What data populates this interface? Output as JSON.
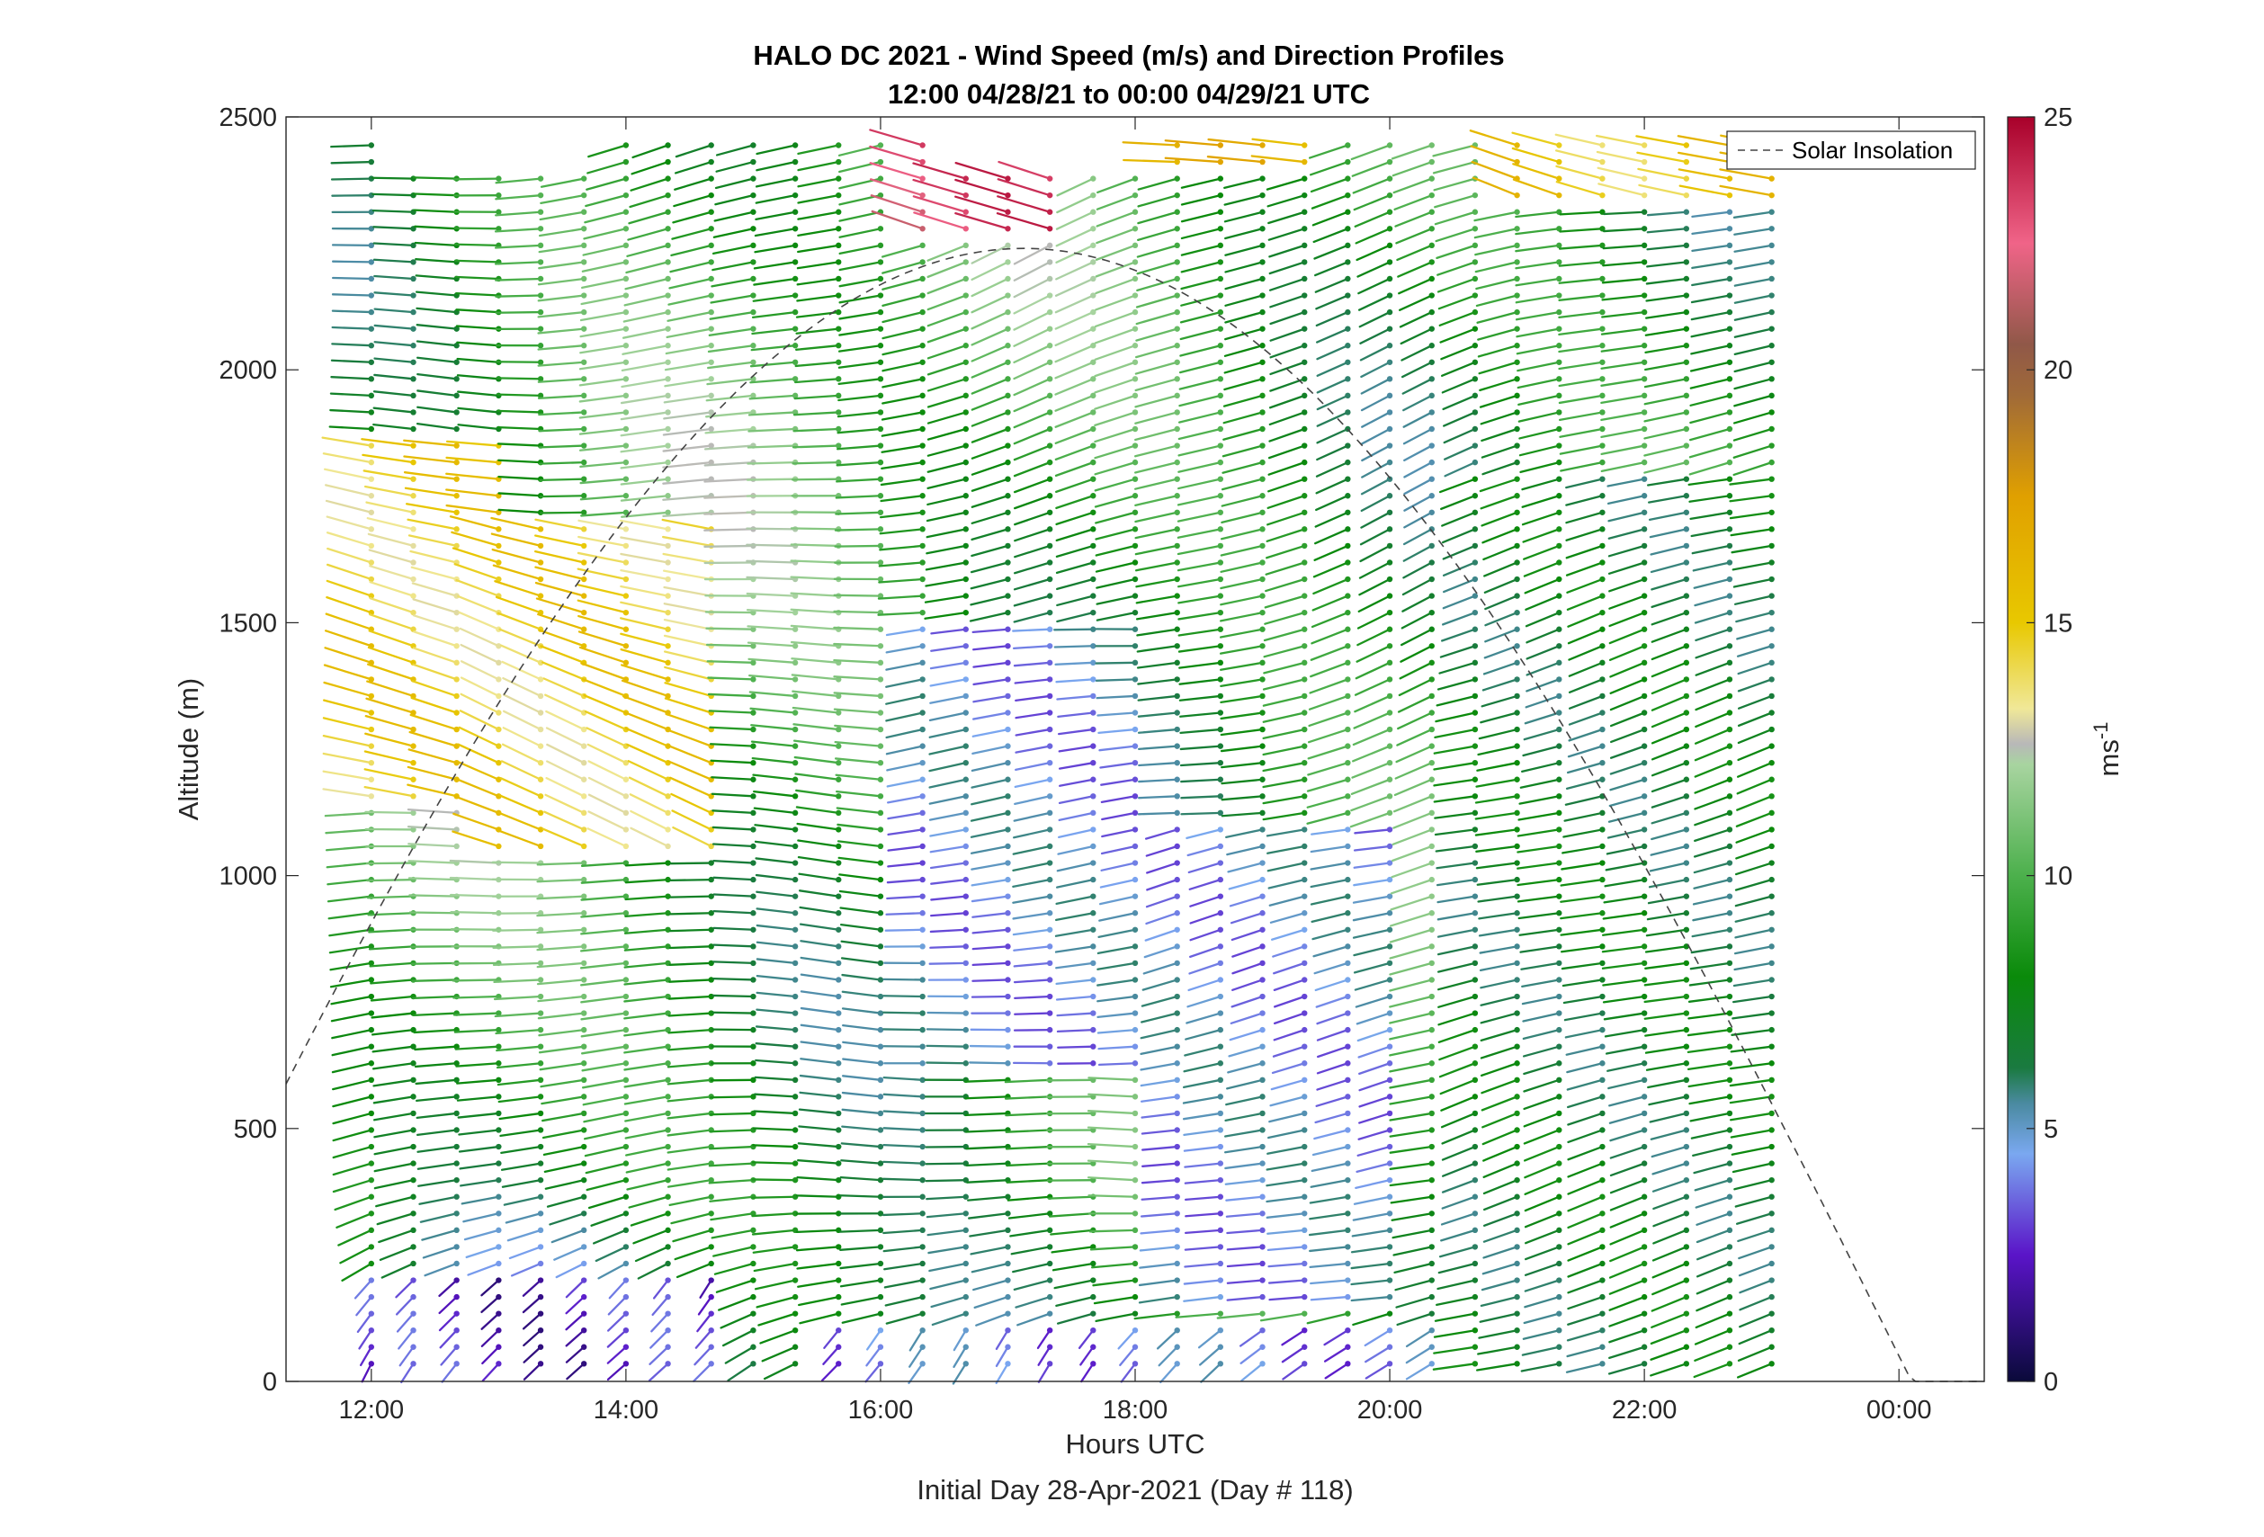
{
  "chart_data": {
    "type": "wind_barb_profile",
    "title": "HALO DC 2021 - Wind Speed (m/s) and Direction Profiles",
    "subtitle": "12:00 04/28/21 to 00:00 04/29/21  UTC",
    "xlabel": "Hours UTC",
    "xlabel_note": "Initial Day 28-Apr-2021 (Day # 118)",
    "ylabel": "Altitude (m)",
    "x_unit": "hours UTC",
    "xlim": [
      11.33,
      24.67
    ],
    "ylim": [
      0,
      2500
    ],
    "xticks": [
      {
        "value": 12,
        "label": "12:00"
      },
      {
        "value": 14,
        "label": "14:00"
      },
      {
        "value": 16,
        "label": "16:00"
      },
      {
        "value": 18,
        "label": "18:00"
      },
      {
        "value": 20,
        "label": "20:00"
      },
      {
        "value": 22,
        "label": "22:00"
      },
      {
        "value": 24,
        "label": "00:00"
      }
    ],
    "yticks": [
      0,
      500,
      1000,
      1500,
      2000,
      2500
    ],
    "profile_times": [
      12.0,
      12.33,
      12.67,
      13.0,
      13.33,
      13.67,
      14.0,
      14.33,
      14.67,
      15.0,
      15.33,
      15.67,
      16.0,
      16.33,
      16.67,
      17.0,
      17.33,
      17.67,
      18.0,
      18.33,
      18.67,
      19.0,
      19.33,
      19.67,
      20.0,
      20.33,
      20.67,
      21.0,
      21.33,
      21.67,
      22.0,
      22.33,
      22.67,
      23.0
    ],
    "altitude_step_m": 33,
    "colorbar": {
      "label": "ms",
      "label_superscript": "-1",
      "range": [
        0,
        25
      ],
      "ticks": [
        0,
        5,
        10,
        15,
        20,
        25
      ],
      "stops": [
        {
          "v": 0,
          "c": "#0a0a3a"
        },
        {
          "v": 2.5,
          "c": "#5a14c8"
        },
        {
          "v": 4.5,
          "c": "#7aa8f0"
        },
        {
          "v": 5.5,
          "c": "#4a8aa0"
        },
        {
          "v": 6.2,
          "c": "#1a7a40"
        },
        {
          "v": 8,
          "c": "#0a8a0a"
        },
        {
          "v": 10,
          "c": "#4cb04c"
        },
        {
          "v": 12.2,
          "c": "#a8d4a0"
        },
        {
          "v": 12.6,
          "c": "#b8b8b8"
        },
        {
          "v": 13.3,
          "c": "#f0e898"
        },
        {
          "v": 15,
          "c": "#e8c800"
        },
        {
          "v": 17.5,
          "c": "#e0a000"
        },
        {
          "v": 19.5,
          "c": "#a06a38"
        },
        {
          "v": 20.5,
          "c": "#905848"
        },
        {
          "v": 22.5,
          "c": "#f06488"
        },
        {
          "v": 25,
          "c": "#a8002a"
        }
      ]
    },
    "speed_regimes": [
      {
        "t0": 11.9,
        "t1": 14.8,
        "z0": 0,
        "z1": 200,
        "speed": 2.5,
        "dir_deg": 200
      },
      {
        "t0": 15.5,
        "t1": 20.6,
        "z0": 0,
        "z1": 120,
        "speed": 4,
        "dir_deg": 210
      },
      {
        "t0": 11.9,
        "t1": 13.0,
        "z0": 1150,
        "z1": 1850,
        "speed": 14.5,
        "dir_deg": 290
      },
      {
        "t0": 13.0,
        "t1": 14.8,
        "z0": 1050,
        "z1": 1700,
        "speed": 14.5,
        "dir_deg": 300
      },
      {
        "t0": 16.3,
        "t1": 18.2,
        "z0": 600,
        "z1": 1500,
        "speed": 4.5,
        "dir_deg": 260
      },
      {
        "t0": 18.2,
        "t1": 20.3,
        "z0": 150,
        "z1": 1100,
        "speed": 4.5,
        "dir_deg": 250
      },
      {
        "t0": 16.1,
        "t1": 17.6,
        "z0": 2250,
        "z1": 2500,
        "speed": 23,
        "dir_deg": 310
      },
      {
        "t0": 17.4,
        "t1": 19.6,
        "z0": 2380,
        "z1": 2500,
        "speed": 16,
        "dir_deg": 270
      },
      {
        "t0": 20.8,
        "t1": 23.05,
        "z0": 2320,
        "z1": 2500,
        "speed": 15,
        "dir_deg": 300
      },
      {
        "t0": 20.6,
        "t1": 23.05,
        "z0": 0,
        "z1": 1800,
        "speed": 7,
        "dir_deg": 245
      }
    ],
    "solar_insolation": {
      "name": "Solar Insolation",
      "style": "dashed",
      "color": "#444444",
      "sunrise_hour": 10.15,
      "sunset_hour": 24.1,
      "peak_hour": 17.2,
      "peak_altitude_m": 2240
    },
    "legend": {
      "placement": "top-right",
      "entries": [
        "Solar Insolation"
      ]
    }
  }
}
